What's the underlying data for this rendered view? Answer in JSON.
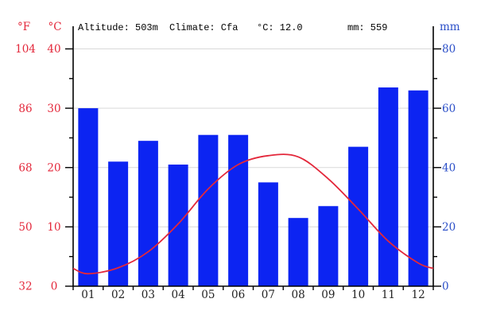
{
  "header": {
    "f_label": "°F",
    "c_label": "°C",
    "mm_label": "mm",
    "title_parts": [
      "Altitude: 503m",
      "Climate: Cfa",
      "°C: 12.0",
      "mm: 559"
    ]
  },
  "axes": {
    "temperature_c_ticks": [
      40,
      30,
      20,
      10,
      0
    ],
    "temperature_f_ticks": [
      104,
      86,
      68,
      50,
      32
    ],
    "precipitation_mm_ticks": [
      80,
      60,
      40,
      20,
      0
    ],
    "minor_c_ticks": [
      35,
      25,
      15,
      5
    ],
    "months": [
      "01",
      "02",
      "03",
      "04",
      "05",
      "06",
      "07",
      "08",
      "09",
      "10",
      "11",
      "12"
    ]
  },
  "chart_data": {
    "type": "bar",
    "subtype": "climate-chart-bars-plus-temperature-line",
    "title": "Altitude: 503m Climate: Cfa °C: 12.0 mm: 559",
    "categories": [
      "01",
      "02",
      "03",
      "04",
      "05",
      "06",
      "07",
      "08",
      "09",
      "10",
      "11",
      "12"
    ],
    "series": [
      {
        "name": "Precipitation (mm)",
        "type": "bar",
        "values": [
          60,
          42,
          49,
          41,
          51,
          51,
          35,
          23,
          27,
          47,
          67,
          66
        ]
      },
      {
        "name": "Temperature (°C)",
        "type": "line",
        "values": [
          2.1,
          3.1,
          5.8,
          10.5,
          16.4,
          20.5,
          22.0,
          21.8,
          18.1,
          13.0,
          7.6,
          3.9
        ]
      }
    ],
    "annotations": {
      "altitude": "503m",
      "climate": "Cfa",
      "mean_temp_c": 12.0,
      "annual_precip_mm": 559
    },
    "left_axis": {
      "label": "°C",
      "range": [
        0,
        40
      ],
      "secondary_label": "°F",
      "secondary_range": [
        32,
        104
      ]
    },
    "right_axis": {
      "label": "mm",
      "range": [
        0,
        80
      ]
    },
    "grid": true,
    "legend": "none"
  },
  "colors": {
    "bar": "#0c24f2",
    "line": "#e3273a",
    "red_label": "#e3273a",
    "blue_label": "#2b4fc8",
    "grid": "#d9d9d9",
    "axis": "#000000",
    "month_label": "#222222",
    "title": "#000000",
    "background": "#ffffff"
  }
}
